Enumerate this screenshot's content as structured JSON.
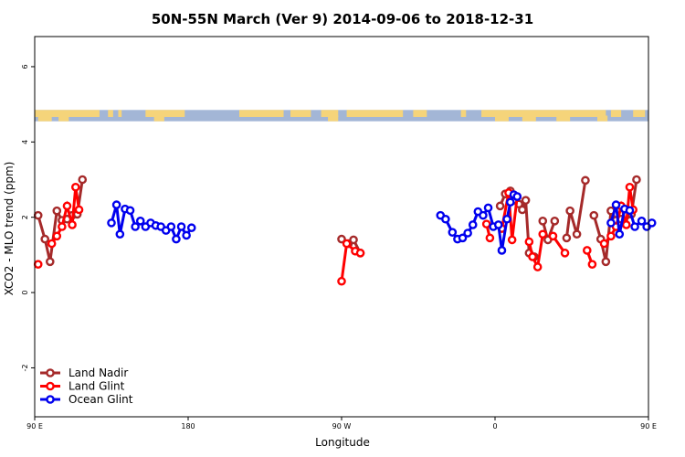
{
  "chart_data": {
    "type": "line",
    "title": "50N-55N March (Ver 9)   2014-09-06 to 2018-12-31",
    "xlabel": "Longitude",
    "ylabel": "XCO2 - MLO trend (ppm)",
    "xlim": [
      90,
      450
    ],
    "ylim": [
      -3.3,
      6.8
    ],
    "x_ticks": [
      {
        "value": 90,
        "label": "90 E"
      },
      {
        "value": 180,
        "label": "180"
      },
      {
        "value": 270,
        "label": "90 W"
      },
      {
        "value": 360,
        "label": "0"
      },
      {
        "value": 450,
        "label": "90 E"
      },
      {
        "value": 540,
        "label": "180"
      }
    ],
    "y_ticks": [
      {
        "value": -2,
        "label": "-2"
      },
      {
        "value": 0,
        "label": "0"
      },
      {
        "value": 2,
        "label": "2"
      },
      {
        "value": 4,
        "label": "4"
      },
      {
        "value": 6,
        "label": "6"
      }
    ],
    "legend_position": "bottom-left",
    "land_ocean_strip": {
      "y_range": [
        4.55,
        4.85
      ],
      "ocean_color": "#a3b6d6",
      "land_color": "#f5d47a"
    },
    "series": [
      {
        "name": "Land Nadir",
        "color": "#a52a2a",
        "segments": [
          [
            [
              92,
              2.05
            ],
            [
              96,
              1.42
            ],
            [
              99,
              0.82
            ],
            [
              103,
              2.17
            ],
            [
              106,
              1.92
            ],
            [
              109,
              1.95
            ],
            [
              112,
              2.05
            ],
            [
              115,
              2.08
            ],
            [
              118,
              3.0
            ]
          ],
          [
            [
              270,
              1.42
            ],
            [
              274,
              1.3
            ],
            [
              277,
              1.4
            ],
            [
              281,
              1.05
            ]
          ],
          [
            [
              363,
              2.3
            ],
            [
              366,
              2.62
            ],
            [
              369,
              2.7
            ],
            [
              371,
              2.45
            ],
            [
              374,
              2.35
            ],
            [
              376,
              2.2
            ],
            [
              378,
              2.45
            ],
            [
              380,
              1.05
            ],
            [
              383,
              0.95
            ]
          ],
          [
            [
              388,
              1.9
            ],
            [
              391,
              1.4
            ],
            [
              395,
              1.9
            ]
          ],
          [
            [
              402,
              1.45
            ],
            [
              404,
              2.17
            ],
            [
              408,
              1.55
            ],
            [
              413,
              2.98
            ]
          ],
          [
            [
              418,
              2.05
            ],
            [
              422,
              1.42
            ],
            [
              425,
              0.82
            ],
            [
              428,
              2.17
            ],
            [
              431,
              1.92
            ],
            [
              434,
              1.95
            ],
            [
              437,
              2.05
            ],
            [
              440,
              2.08
            ],
            [
              443,
              3.0
            ]
          ]
        ]
      },
      {
        "name": "Land Glint",
        "color": "#ff0000",
        "segments": [
          [
            [
              92,
              0.75
            ]
          ],
          [
            [
              100,
              1.3
            ],
            [
              103,
              1.5
            ],
            [
              106,
              1.75
            ],
            [
              109,
              2.3
            ],
            [
              112,
              1.8
            ],
            [
              114,
              2.8
            ],
            [
              116,
              2.2
            ]
          ],
          [
            [
              270,
              0.3
            ],
            [
              273,
              1.3
            ],
            [
              278,
              1.1
            ],
            [
              281,
              1.05
            ]
          ],
          [
            [
              355,
              1.82
            ],
            [
              357,
              1.45
            ]
          ],
          [
            [
              364,
              1.7
            ],
            [
              368,
              2.65
            ],
            [
              370,
              1.4
            ],
            [
              373,
              2.55
            ]
          ],
          [
            [
              380,
              1.35
            ],
            [
              382,
              0.95
            ],
            [
              385,
              0.68
            ],
            [
              388,
              1.55
            ]
          ],
          [
            [
              394,
              1.5
            ],
            [
              401,
              1.05
            ]
          ],
          [
            [
              414,
              1.12
            ],
            [
              417,
              0.75
            ]
          ],
          [
            [
              424,
              1.3
            ],
            [
              428,
              1.5
            ],
            [
              431,
              1.75
            ],
            [
              434,
              2.3
            ],
            [
              437,
              1.8
            ],
            [
              439,
              2.8
            ],
            [
              441,
              2.2
            ]
          ]
        ]
      },
      {
        "name": "Ocean Glint",
        "color": "#0000ee",
        "segments": [
          [
            [
              135,
              1.85
            ],
            [
              138,
              2.33
            ],
            [
              140,
              1.55
            ],
            [
              143,
              2.22
            ],
            [
              146,
              2.18
            ],
            [
              149,
              1.75
            ],
            [
              152,
              1.9
            ],
            [
              155,
              1.75
            ],
            [
              158,
              1.85
            ],
            [
              161,
              1.78
            ],
            [
              164,
              1.75
            ],
            [
              167,
              1.65
            ],
            [
              170,
              1.75
            ],
            [
              173,
              1.42
            ],
            [
              176,
              1.75
            ],
            [
              179,
              1.52
            ],
            [
              182,
              1.72
            ]
          ],
          [
            [
              328,
              2.05
            ],
            [
              331,
              1.95
            ],
            [
              335,
              1.6
            ],
            [
              338,
              1.42
            ],
            [
              341,
              1.45
            ],
            [
              344,
              1.58
            ],
            [
              347,
              1.8
            ],
            [
              350,
              2.15
            ],
            [
              353,
              2.05
            ],
            [
              356,
              2.25
            ],
            [
              359,
              1.75
            ],
            [
              362,
              1.8
            ],
            [
              364,
              1.12
            ],
            [
              367,
              1.95
            ],
            [
              369,
              2.4
            ],
            [
              371,
              2.6
            ],
            [
              373,
              2.55
            ]
          ],
          [
            [
              428,
              1.85
            ],
            [
              431,
              2.33
            ],
            [
              433,
              1.55
            ],
            [
              436,
              2.22
            ],
            [
              439,
              2.18
            ],
            [
              442,
              1.75
            ],
            [
              446,
              1.9
            ],
            [
              449,
              1.75
            ],
            [
              452,
              1.85
            ]
          ]
        ]
      }
    ]
  }
}
